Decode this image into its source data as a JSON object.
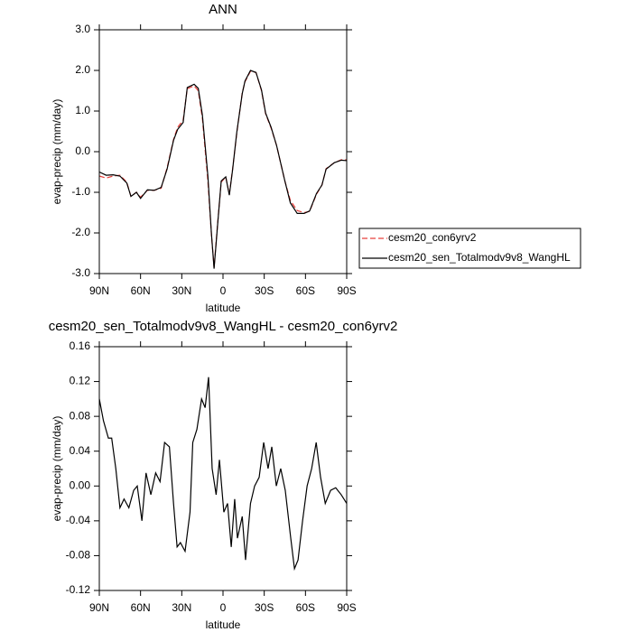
{
  "chart_data": [
    {
      "type": "line",
      "title": "ANN",
      "ylabel": "evap-precip (mm/day)",
      "xlabel": "latitude",
      "x": [
        90,
        85,
        80,
        75,
        70,
        67,
        63,
        60,
        55,
        50,
        45,
        40.7,
        36,
        33,
        29,
        26,
        21,
        18,
        15,
        11,
        8.5,
        6.5,
        4,
        1.3,
        -2,
        -4.6,
        -7,
        -10,
        -14,
        -16,
        -20,
        -24,
        -28,
        -31,
        -35,
        -39,
        -45,
        -49,
        -54,
        -59,
        -63,
        -68,
        -72,
        -75,
        -81,
        -86,
        -90
      ],
      "series": [
        {
          "name": "cesm20_con6yrv2",
          "color": "#e8413c",
          "linestyle": "dashed",
          "values": [
            -0.6,
            -0.65,
            -0.6,
            -0.58,
            -0.75,
            -1.1,
            -1.0,
            -1.12,
            -0.95,
            -0.95,
            -0.9,
            -0.4,
            0.3,
            0.6,
            0.78,
            1.55,
            1.62,
            1.5,
            0.82,
            -0.72,
            -2.0,
            -2.85,
            -1.8,
            -0.75,
            -0.62,
            -1.05,
            -0.42,
            0.45,
            1.45,
            1.72,
            1.98,
            1.95,
            1.5,
            0.93,
            0.58,
            0.15,
            -0.72,
            -1.2,
            -1.45,
            -1.5,
            -1.47,
            -1.05,
            -0.82,
            -0.42,
            -0.27,
            -0.2,
            -0.2
          ]
        },
        {
          "name": "cesm20_sen_Totalmodv9v8_WangHL",
          "color": "#000000",
          "linestyle": "solid",
          "values": [
            -0.5,
            -0.58,
            -0.57,
            -0.6,
            -0.77,
            -1.1,
            -1.0,
            -1.15,
            -0.94,
            -0.95,
            -0.88,
            -0.43,
            0.28,
            0.55,
            0.72,
            1.58,
            1.66,
            1.56,
            0.9,
            -0.6,
            -1.98,
            -2.88,
            -1.83,
            -0.72,
            -0.62,
            -1.07,
            -0.44,
            0.47,
            1.43,
            1.74,
            2.0,
            1.95,
            1.52,
            0.95,
            0.6,
            0.15,
            -0.72,
            -1.26,
            -1.52,
            -1.52,
            -1.46,
            -1.03,
            -0.82,
            -0.43,
            -0.27,
            -0.21,
            -0.22
          ]
        }
      ],
      "xlim": [
        90,
        -90
      ],
      "xticks": [
        {
          "value": 90,
          "label": "90N"
        },
        {
          "value": 60,
          "label": "60N"
        },
        {
          "value": 30,
          "label": "30N"
        },
        0,
        {
          "value": -30,
          "label": "30S"
        },
        {
          "value": -60,
          "label": "60S"
        },
        {
          "value": -90,
          "label": "90S"
        }
      ],
      "ylim": [
        -3,
        3
      ],
      "yticks": [
        {
          "value": 3,
          "label": "3.0"
        },
        {
          "value": 2,
          "label": "2.0"
        },
        {
          "value": 1,
          "label": "1.0"
        },
        {
          "value": 0,
          "label": "0.0"
        },
        {
          "value": -1,
          "label": "-1.0"
        },
        {
          "value": -2,
          "label": "-2.0"
        },
        {
          "value": -3,
          "label": "-3.0"
        }
      ],
      "legend": "right"
    },
    {
      "type": "line",
      "title": "cesm20_sen_Totalmodv9v8_WangHL - cesm20_con6yrv2",
      "ylabel": "evap-precip (mm/day)",
      "xlabel": "latitude",
      "color": "#000000",
      "x": [
        90,
        87,
        83.4,
        81,
        78,
        75,
        72,
        68.5,
        65,
        62.4,
        59,
        56,
        52.5,
        49,
        45.8,
        42.5,
        39,
        36,
        33.4,
        31,
        27.6,
        24,
        22,
        19,
        15.6,
        13,
        10.5,
        7.9,
        5,
        2.6,
        -0.6,
        -3.3,
        -6,
        -8.5,
        -10.5,
        -14,
        -16.4,
        -20,
        -23,
        -26.3,
        -29.6,
        -32.8,
        -35.5,
        -38.8,
        -42,
        -45.3,
        -49.3,
        -52,
        -54.6,
        -57.9,
        -61.2,
        -64.5,
        -67.8,
        -71,
        -74.4,
        -78.3,
        -82,
        -86,
        -90
      ],
      "values": [
        0.1,
        0.075,
        0.055,
        0.055,
        0.02,
        -0.025,
        -0.015,
        -0.025,
        -0.005,
        0.0,
        -0.04,
        0.015,
        -0.01,
        0.015,
        0.005,
        0.05,
        0.045,
        -0.02,
        -0.07,
        -0.065,
        -0.075,
        -0.03,
        0.05,
        0.065,
        0.1,
        0.09,
        0.125,
        0.02,
        -0.01,
        0.03,
        -0.03,
        -0.02,
        -0.07,
        -0.015,
        -0.06,
        -0.035,
        -0.085,
        -0.02,
        0.0,
        0.01,
        0.05,
        0.02,
        0.045,
        0.0,
        0.02,
        -0.005,
        -0.06,
        -0.095,
        -0.085,
        -0.04,
        0.0,
        0.02,
        0.05,
        0.01,
        -0.02,
        -0.005,
        -0.002,
        -0.01,
        -0.02
      ],
      "xlim": [
        90,
        -90
      ],
      "xticks": [
        {
          "value": 90,
          "label": "90N"
        },
        {
          "value": 60,
          "label": "60N"
        },
        {
          "value": 30,
          "label": "30N"
        },
        0,
        {
          "value": -30,
          "label": "30S"
        },
        {
          "value": -60,
          "label": "60S"
        },
        {
          "value": -90,
          "label": "90S"
        }
      ],
      "ylim": [
        -0.12,
        0.16
      ],
      "yticks": [
        0.16,
        0.12,
        0.08,
        0.04,
        {
          "value": 0,
          "label": "0.00"
        },
        -0.04,
        -0.08,
        -0.12
      ]
    }
  ]
}
